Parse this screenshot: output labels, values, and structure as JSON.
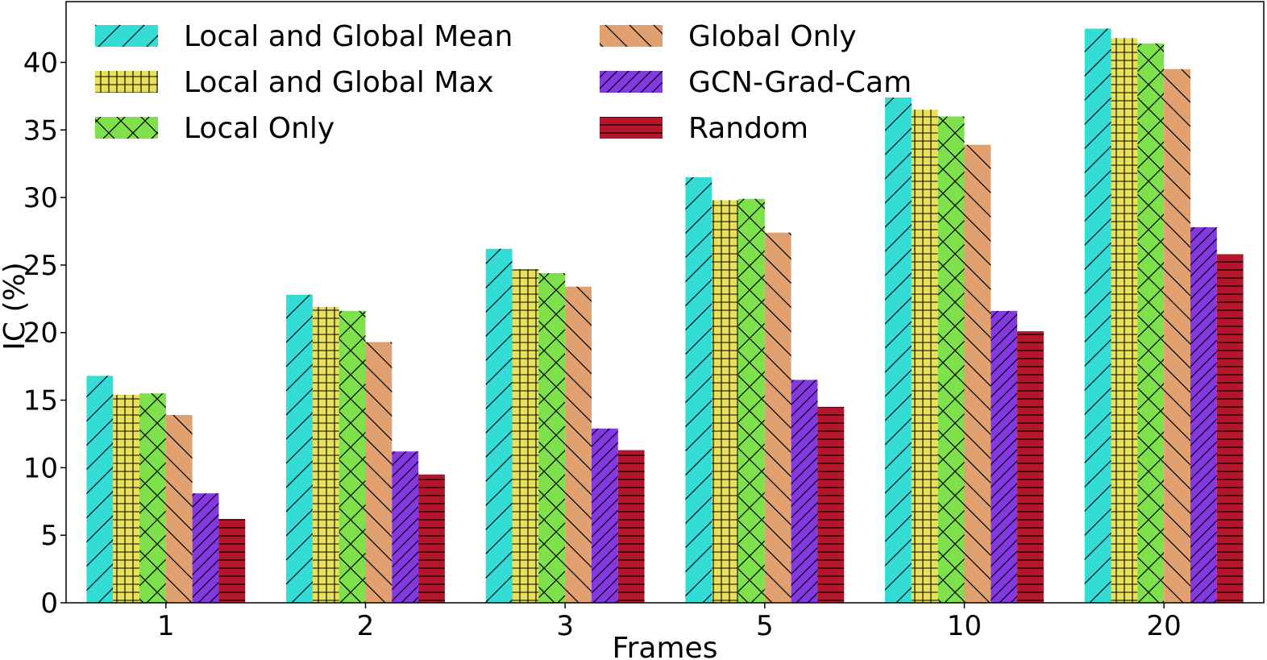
{
  "chart_data": {
    "type": "bar",
    "xlabel": "Frames",
    "ylabel": "IC (%)",
    "ylim": [
      0,
      44.5
    ],
    "yticks": [
      0,
      5,
      10,
      15,
      20,
      25,
      30,
      35,
      40
    ],
    "categories": [
      "1",
      "2",
      "3",
      "5",
      "10",
      "20"
    ],
    "legend_position": "top-left",
    "series": [
      {
        "name": "Local and Global Mean",
        "color": "#33ddd6",
        "hatch": "forward-diagonal",
        "values": [
          16.8,
          22.8,
          26.2,
          31.5,
          37.4,
          42.5
        ]
      },
      {
        "name": "Local and Global Max",
        "color": "#e8e05a",
        "hatch": "grid",
        "values": [
          15.4,
          21.9,
          24.7,
          29.8,
          36.5,
          41.8
        ]
      },
      {
        "name": "Local Only",
        "color": "#7ee04a",
        "hatch": "cross",
        "values": [
          15.5,
          21.6,
          24.4,
          29.9,
          36.0,
          41.4
        ]
      },
      {
        "name": "Global Only",
        "color": "#e0a070",
        "hatch": "back-diagonal",
        "values": [
          13.9,
          19.3,
          23.4,
          27.4,
          33.9,
          39.5
        ]
      },
      {
        "name": "GCN-Grad-Cam",
        "color": "#8438e0",
        "hatch": "dense-diagonal",
        "values": [
          8.1,
          11.2,
          12.9,
          16.5,
          21.6,
          27.8
        ]
      },
      {
        "name": "Random",
        "color": "#b5162b",
        "hatch": "horizontal",
        "values": [
          6.2,
          9.5,
          11.3,
          14.5,
          20.1,
          25.8
        ]
      }
    ]
  }
}
